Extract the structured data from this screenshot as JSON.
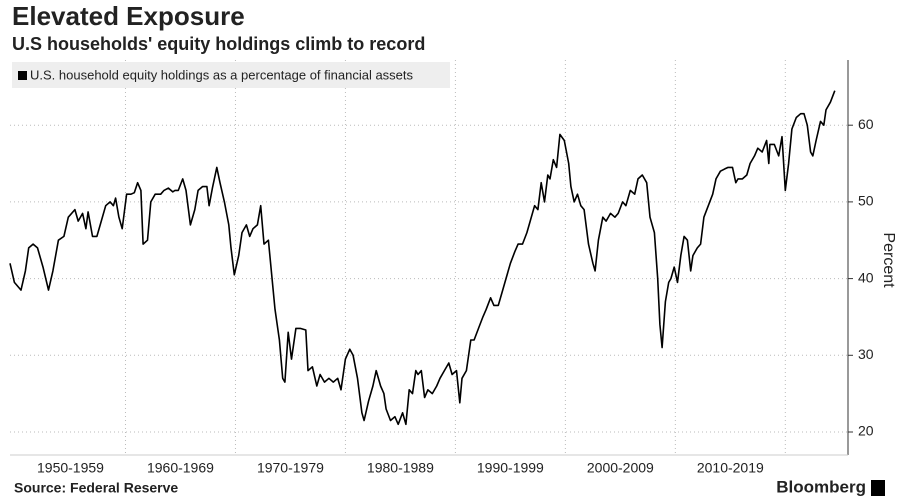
{
  "chart_data": {
    "type": "line",
    "title": "Elevated Exposure",
    "subtitle": "U.S households' equity holdings climb to record",
    "y_label": "Percent",
    "source": "Source: Federal Reserve",
    "brand": "Bloomberg",
    "legend": "top-left",
    "grid": true,
    "xlim": [
      1949.5,
      2025.7
    ],
    "ylim": [
      17,
      68.5
    ],
    "yticks": [
      20,
      30,
      40,
      50,
      60
    ],
    "xticks": [
      {
        "value": 1955,
        "label": "1950-1959"
      },
      {
        "value": 1965,
        "label": "1960-1969"
      },
      {
        "value": 1975,
        "label": "1970-1979"
      },
      {
        "value": 1985,
        "label": "1980-1989"
      },
      {
        "value": 1995,
        "label": "1990-1999"
      },
      {
        "value": 2005,
        "label": "2000-2009"
      },
      {
        "value": 2015,
        "label": "2010-2019"
      }
    ],
    "x": [
      1949.5,
      1949.9,
      1950.5,
      1950.9,
      1951.2,
      1951.6,
      1952.0,
      1952.5,
      1953.0,
      1953.4,
      1953.9,
      1954.4,
      1954.8,
      1955.4,
      1955.7,
      1956.1,
      1956.4,
      1956.6,
      1957.0,
      1957.4,
      1957.7,
      1958.2,
      1958.6,
      1958.9,
      1959.1,
      1959.4,
      1959.7,
      1960.1,
      1960.5,
      1960.8,
      1961.1,
      1961.4,
      1961.6,
      1962.0,
      1962.3,
      1962.7,
      1963.2,
      1963.5,
      1963.9,
      1964.3,
      1964.5,
      1964.8,
      1965.2,
      1965.5,
      1965.9,
      1966.3,
      1966.6,
      1967.0,
      1967.4,
      1967.6,
      1967.9,
      1968.3,
      1968.6,
      1969.0,
      1969.4,
      1969.6,
      1969.9,
      1970.3,
      1970.6,
      1971.0,
      1971.3,
      1971.6,
      1972.0,
      1972.3,
      1972.6,
      1973.0,
      1973.3,
      1973.6,
      1974.0,
      1974.3,
      1974.5,
      1974.8,
      1975.1,
      1975.5,
      1975.9,
      1976.4,
      1976.6,
      1977.0,
      1977.4,
      1977.7,
      1978.1,
      1978.5,
      1978.9,
      1979.3,
      1979.6,
      1980.0,
      1980.4,
      1980.7,
      1981.1,
      1981.5,
      1981.7,
      1982.1,
      1982.5,
      1982.8,
      1983.2,
      1983.5,
      1983.7,
      1984.1,
      1984.5,
      1984.8,
      1985.2,
      1985.5,
      1985.8,
      1986.1,
      1986.4,
      1986.6,
      1986.9,
      1987.2,
      1987.5,
      1987.9,
      1988.3,
      1988.6,
      1989.0,
      1989.4,
      1989.7,
      1990.1,
      1990.4,
      1990.6,
      1991.0,
      1991.4,
      1991.7,
      1992.1,
      1992.5,
      1992.8,
      1993.2,
      1993.5,
      1993.9,
      1994.3,
      1994.6,
      1995.0,
      1995.4,
      1995.7,
      1996.1,
      1996.5,
      1996.8,
      1997.2,
      1997.5,
      1997.8,
      1998.1,
      1998.4,
      1998.6,
      1998.9,
      1999.2,
      1999.5,
      1999.9,
      2000.3,
      2000.5,
      2000.8,
      2001.1,
      2001.4,
      2001.7,
      2002.1,
      2002.5,
      2002.7,
      2003.0,
      2003.4,
      2003.7,
      2004.1,
      2004.5,
      2004.8,
      2005.2,
      2005.5,
      2005.9,
      2006.3,
      2006.6,
      2007.0,
      2007.4,
      2007.7,
      2008.1,
      2008.4,
      2008.6,
      2008.8,
      2009.1,
      2009.4,
      2009.6,
      2009.9,
      2010.2,
      2010.5,
      2010.8,
      2011.1,
      2011.4,
      2011.6,
      2012.0,
      2012.3,
      2012.6,
      2013.0,
      2013.4,
      2013.7,
      2014.1,
      2014.5,
      2014.8,
      2015.2,
      2015.5,
      2015.7,
      2016.1,
      2016.5,
      2016.8,
      2017.2,
      2017.5,
      2017.9,
      2018.3,
      2018.5,
      2018.6,
      2019.0,
      2019.4,
      2019.7,
      2020.0,
      2020.3,
      2020.6,
      2021.0,
      2021.4,
      2021.7,
      2022.0,
      2022.3,
      2022.5,
      2022.8,
      2023.2,
      2023.5,
      2023.7,
      2024.1,
      2024.5
    ],
    "series": [
      {
        "name": "U.S. household equity holdings as a percentage of financial assets",
        "color": "#000000",
        "values": [
          42,
          39.5,
          38.5,
          41,
          44,
          44.5,
          44,
          41.5,
          38.5,
          41,
          45,
          45.5,
          48,
          49,
          47.5,
          48.5,
          46.5,
          48.7,
          45.5,
          45.5,
          47,
          49.5,
          50,
          49.5,
          50.5,
          48,
          46.5,
          51,
          51,
          51.2,
          52.5,
          51.5,
          44.5,
          45,
          50,
          51,
          51,
          51.5,
          51.8,
          51.3,
          51.5,
          51.5,
          53,
          51.5,
          47,
          49,
          51.5,
          52,
          52,
          49.5,
          51.8,
          54.5,
          52.5,
          50,
          47,
          44,
          40.5,
          43,
          46,
          47,
          45.5,
          46.5,
          47,
          49.5,
          44.5,
          45,
          40.5,
          36,
          32,
          27,
          26.5,
          33,
          29.5,
          33.5,
          33.5,
          33.3,
          28,
          28.5,
          26,
          27.5,
          26.5,
          27,
          26.5,
          27,
          25.5,
          29.5,
          30.8,
          30,
          27,
          22.5,
          21.5,
          24,
          26,
          28,
          26,
          25,
          23,
          21.5,
          22,
          21,
          22.5,
          21,
          25.5,
          25,
          28,
          27.5,
          28,
          24.5,
          25.5,
          25,
          26,
          27,
          28,
          29,
          27.5,
          28,
          23.8,
          27,
          28,
          32,
          32,
          33.5,
          35,
          36,
          37.5,
          36.5,
          36.5,
          38.5,
          40,
          42,
          43.5,
          44.5,
          44.5,
          46,
          47.5,
          49.5,
          49,
          52.5,
          50,
          53.5,
          53,
          55.5,
          54.5,
          58.8,
          58,
          55,
          52,
          50,
          51,
          49.5,
          49,
          44.5,
          42,
          41,
          45,
          48,
          47.5,
          48.5,
          48,
          48.5,
          50,
          49.5,
          51.5,
          51,
          53,
          53.5,
          52.5,
          48,
          46,
          40,
          34,
          31,
          37,
          39.5,
          40,
          41.5,
          39.5,
          43,
          45.5,
          45,
          41,
          43,
          44,
          44.5,
          48,
          49.5,
          51,
          53,
          54,
          54.3,
          54.5,
          54.5,
          52.5,
          53,
          53,
          53.5,
          55,
          56,
          57,
          56.5,
          58,
          55,
          57.5,
          57.5,
          56,
          58.5,
          51.5,
          55,
          59.5,
          61,
          61.5,
          61.5,
          60,
          56.5,
          56,
          58,
          60.5,
          60,
          62,
          63,
          64.5
        ]
      }
    ]
  }
}
